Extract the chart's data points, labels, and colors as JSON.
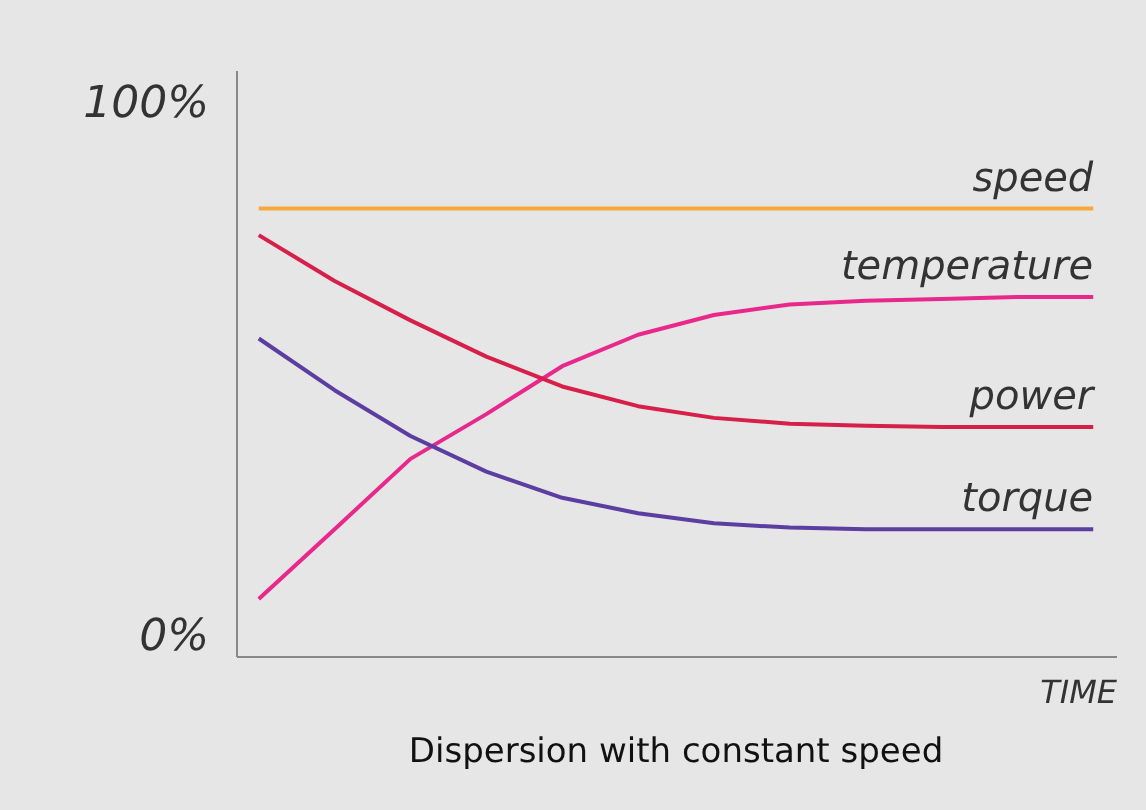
{
  "chart_data": {
    "type": "line",
    "title": "Dispersion with constant speed",
    "xlabel": "TIME",
    "categories": [
      null,
      null,
      null,
      null,
      null,
      null,
      null,
      null,
      null,
      null,
      null,
      null
    ],
    "ylim": [
      -4,
      106
    ],
    "yticks": [
      {
        "value": 100,
        "label": "100%"
      },
      {
        "value": 0,
        "label": "0%"
      }
    ],
    "series": [
      {
        "name": "speed",
        "color": "#f7a73c",
        "values": [
          80,
          80,
          80,
          80,
          80,
          80,
          80,
          80,
          80,
          80,
          80,
          80
        ]
      },
      {
        "name": "temperature",
        "color": "#e8288a",
        "values": [
          6.7,
          19.8,
          33,
          41.4,
          50.4,
          56.3,
          60,
          62,
          62.7,
          63,
          63.4,
          63.4
        ]
      },
      {
        "name": "power",
        "color": "#d6204a",
        "values": [
          75,
          66.4,
          59,
          52.2,
          46.6,
          42.9,
          40.7,
          39.6,
          39.2,
          39,
          39,
          39
        ]
      },
      {
        "name": "torque",
        "color": "#5b3ea0",
        "values": [
          55.6,
          45.9,
          37.3,
          30.6,
          25.7,
          22.8,
          20.9,
          20.1,
          19.8,
          19.8,
          19.8,
          19.8
        ]
      }
    ]
  }
}
